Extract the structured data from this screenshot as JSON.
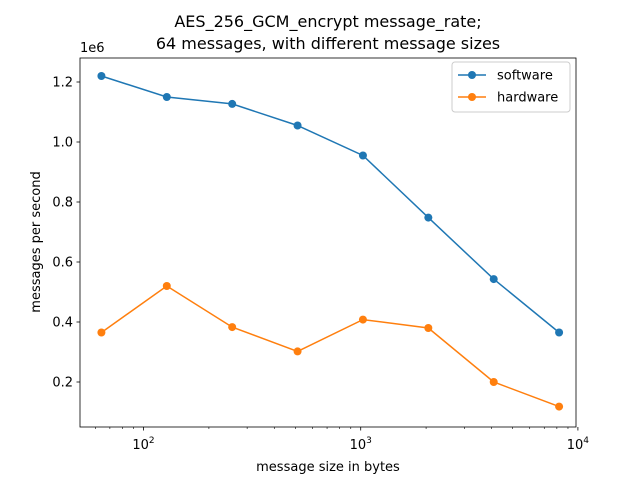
{
  "chart_data": {
    "type": "line",
    "title": "AES_256_GCM_encrypt message_rate;\n64 messages, with different message sizes",
    "xlabel": "message size in bytes",
    "ylabel": "messages per second",
    "xscale": "log",
    "xlim": [
      51,
      9800
    ],
    "ylim": [
      0.05,
      1.28
    ],
    "y_multiplier_label": "1e6",
    "x_major_ticks": [
      {
        "value": 100,
        "label": "10²",
        "base": "10",
        "exp": "2"
      },
      {
        "value": 1000,
        "label": "10³",
        "base": "10",
        "exp": "3"
      },
      {
        "value": 10000,
        "label": "10⁴",
        "base": "10",
        "exp": "4"
      }
    ],
    "y_ticks": [
      {
        "value": 0.2,
        "label": "0.2"
      },
      {
        "value": 0.4,
        "label": "0.4"
      },
      {
        "value": 0.6,
        "label": "0.6"
      },
      {
        "value": 0.8,
        "label": "0.8"
      },
      {
        "value": 1.0,
        "label": "1.0"
      },
      {
        "value": 1.2,
        "label": "1.2"
      }
    ],
    "grid": false,
    "legend_position": "top-right",
    "x": [
      64,
      128,
      256,
      512,
      1024,
      2048,
      4096,
      8192
    ],
    "series": [
      {
        "name": "software",
        "color": "#1f77b4",
        "values": [
          1.22,
          1.15,
          1.127,
          1.055,
          0.955,
          0.748,
          0.543,
          0.365
        ]
      },
      {
        "name": "hardware",
        "color": "#ff7f0e",
        "values": [
          0.365,
          0.52,
          0.383,
          0.302,
          0.408,
          0.38,
          0.2,
          0.118
        ]
      }
    ]
  }
}
